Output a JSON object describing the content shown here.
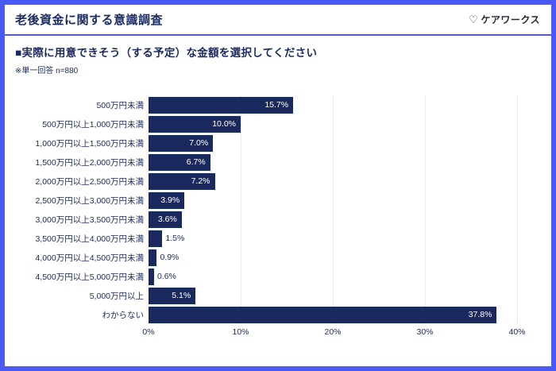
{
  "header": {
    "title": "老後資金に関する意識調査",
    "brand": "ケアワークス",
    "heart_glyph": "♡"
  },
  "question": {
    "text": "■実際に用意できそう（する予定）な金額を選択してください",
    "note": "※単一回答 n=880"
  },
  "chart_data": {
    "type": "bar",
    "orientation": "horizontal",
    "title": "実際に用意できそう（する予定）な金額",
    "categories": [
      "500万円未満",
      "500万円以上1,000万円未満",
      "1,000万円以上1,500万円未満",
      "1,500万円以上2,000万円未満",
      "2,000万円以上2,500万円未満",
      "2,500万円以上3,000万円未満",
      "3,000万円以上3,500万円未満",
      "3,500万円以上4,000万円未満",
      "4,000万円以上4,500万円未満",
      "4,500万円以上5,000万円未満",
      "5,000万円以上",
      "わからない"
    ],
    "values": [
      15.7,
      10.0,
      7.0,
      6.7,
      7.2,
      3.9,
      3.6,
      1.5,
      0.9,
      0.6,
      5.1,
      37.8
    ],
    "value_suffix": "%",
    "xlim": [
      0,
      40
    ],
    "x_ticks": [
      "0%",
      "10%",
      "20%",
      "30%",
      "40%"
    ],
    "grid": true,
    "legend": false
  },
  "colors": {
    "accent_border": "#4B5AF5",
    "bar": "#1B2A5E",
    "text_navy": "#1B2A5E",
    "value_inside": "#FFFFFF",
    "gridline": "#E9EBF4",
    "logo_text": "#1F2733",
    "background": "#FFFFFF"
  }
}
